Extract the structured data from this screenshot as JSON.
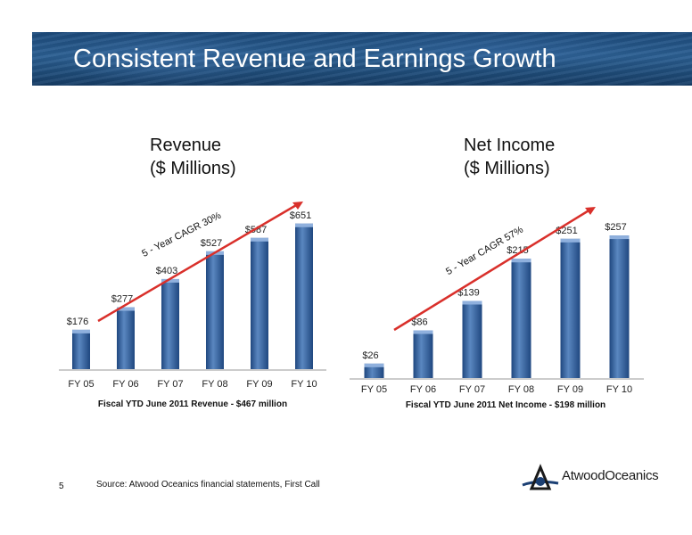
{
  "slide": {
    "title": "Consistent Revenue and Earnings Growth",
    "page_number": "5",
    "source": "Source: Atwood Oceanics financial statements, First Call",
    "logo_text": "AtwoodOceanics"
  },
  "colors": {
    "bar_top": "#5a87c0",
    "bar_bottom": "#1f477f",
    "arrow": "#d9302b",
    "banner": "#1d4b7c"
  },
  "chart_data": [
    {
      "type": "bar",
      "heading_line1": "Revenue",
      "heading_line2": "($ Millions)",
      "categories": [
        "FY 05",
        "FY 06",
        "FY 07",
        "FY 08",
        "FY 09",
        "FY 10"
      ],
      "values": [
        176,
        277,
        403,
        527,
        587,
        651
      ],
      "value_labels": [
        "$176",
        "$277",
        "$403",
        "$527",
        "$587",
        "$651"
      ],
      "trend_label": "5 - Year CAGR 30%",
      "caption": "Fiscal YTD June 2011 Revenue - $467 million",
      "ylim": [
        0,
        670
      ],
      "grid": false,
      "legend": "none"
    },
    {
      "type": "bar",
      "heading_line1": "Net Income",
      "heading_line2": "($ Millions)",
      "categories": [
        "FY 05",
        "FY 06",
        "FY 07",
        "FY 08",
        "FY 09",
        "FY 10"
      ],
      "values": [
        26,
        86,
        139,
        215,
        251,
        257
      ],
      "value_labels": [
        "$26",
        "$86",
        "$139",
        "$215",
        "$251",
        "$257"
      ],
      "trend_label": "5 - Year CAGR 57%",
      "caption": "Fiscal YTD June  2011 Net Income - $198 million",
      "ylim": [
        0,
        270
      ],
      "grid": false,
      "legend": "none"
    }
  ]
}
